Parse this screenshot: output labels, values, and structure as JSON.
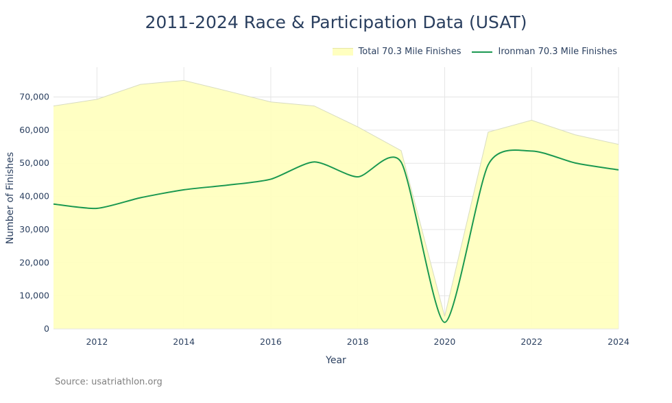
{
  "chart_data": {
    "type": "area",
    "title": "2011-2024 Race & Participation Data (USAT)",
    "xlabel": "Year",
    "ylabel": "Number of Finishes",
    "xlim": [
      2011,
      2024
    ],
    "ylim": [
      0,
      79000
    ],
    "x_ticks": [
      2012,
      2014,
      2016,
      2018,
      2020,
      2022,
      2024
    ],
    "y_ticks": [
      0,
      10000,
      20000,
      30000,
      40000,
      50000,
      60000,
      70000
    ],
    "x_tick_labels": [
      "2012",
      "2014",
      "2016",
      "2018",
      "2020",
      "2022",
      "2024"
    ],
    "y_tick_labels": [
      "0",
      "10,000",
      "20,000",
      "30,000",
      "40,000",
      "50,000",
      "60,000",
      "70,000"
    ],
    "grid": true,
    "legend_position": "top-right",
    "x": [
      2011,
      2012,
      2013,
      2014,
      2015,
      2016,
      2017,
      2018,
      2019,
      2020,
      2021,
      2022,
      2023,
      2024
    ],
    "series": [
      {
        "name": "Total 70.3 Mile Finishes",
        "type": "area",
        "color": "#ffffc0",
        "values": [
          67300,
          69300,
          73800,
          75000,
          71800,
          68500,
          67300,
          61000,
          53800,
          3800,
          59400,
          63000,
          58600,
          55700
        ]
      },
      {
        "name": "Ironman 70.3 Mile Finishes",
        "type": "line",
        "color": "#1a9850",
        "values": [
          37700,
          36400,
          39600,
          42000,
          43400,
          45200,
          50400,
          45900,
          50300,
          2000,
          49500,
          53700,
          50100,
          48000
        ]
      }
    ]
  },
  "source": "Source: usatriathlon.org"
}
